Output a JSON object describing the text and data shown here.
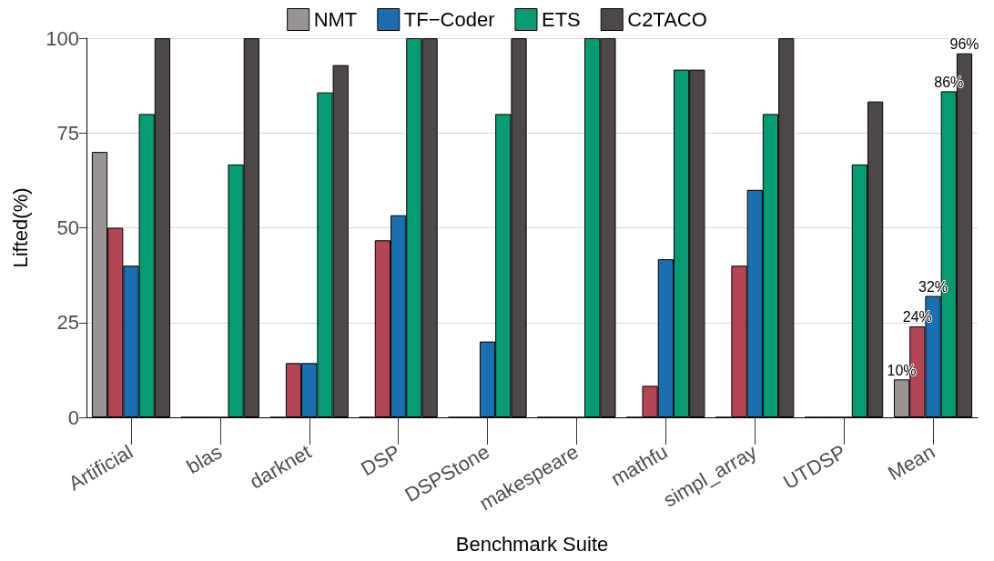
{
  "chart_data": {
    "type": "bar",
    "xlabel": "Benchmark Suite",
    "ylabel": "Lifted(%)",
    "categories": [
      "Artificial",
      "blas",
      "darknet",
      "DSP",
      "DSPStone",
      "makespeare",
      "mathfu",
      "simpl_array",
      "UTDSP",
      "Mean"
    ],
    "series": [
      {
        "name": "NMT",
        "color": "#999393",
        "values": [
          70,
          0,
          0,
          0,
          0,
          0,
          0,
          0,
          0,
          10
        ],
        "value_labels": [
          null,
          null,
          null,
          null,
          null,
          null,
          null,
          null,
          null,
          "10%"
        ]
      },
      {
        "color": "#b34555",
        "values": [
          50,
          0,
          14.3,
          46.7,
          0,
          0,
          8.3,
          40,
          0,
          24
        ],
        "value_labels": [
          null,
          null,
          null,
          null,
          null,
          null,
          null,
          null,
          null,
          "24%"
        ]
      },
      {
        "name": "TF−Coder",
        "color": "#1a6fb0",
        "values": [
          40,
          0,
          14.3,
          53.3,
          20,
          0,
          41.7,
          60,
          0,
          32
        ],
        "value_labels": [
          null,
          null,
          null,
          null,
          null,
          null,
          null,
          null,
          null,
          "32%"
        ]
      },
      {
        "name": "ETS",
        "color": "#079b73",
        "values": [
          80,
          66.7,
          85.7,
          100,
          80,
          100,
          91.7,
          80,
          66.7,
          86
        ],
        "value_labels": [
          null,
          null,
          null,
          null,
          null,
          null,
          null,
          null,
          null,
          "86%"
        ]
      },
      {
        "name": "C2TACO",
        "color": "#4d4748",
        "values": [
          100,
          100,
          92.9,
          100,
          100,
          100,
          91.7,
          100,
          83.3,
          96
        ],
        "value_labels": [
          null,
          null,
          null,
          null,
          null,
          null,
          null,
          null,
          null,
          "96%"
        ]
      }
    ],
    "ylim": [
      0,
      100
    ],
    "yticks": [
      0,
      25,
      50,
      75,
      100
    ],
    "grid": "y",
    "legend": "top"
  }
}
